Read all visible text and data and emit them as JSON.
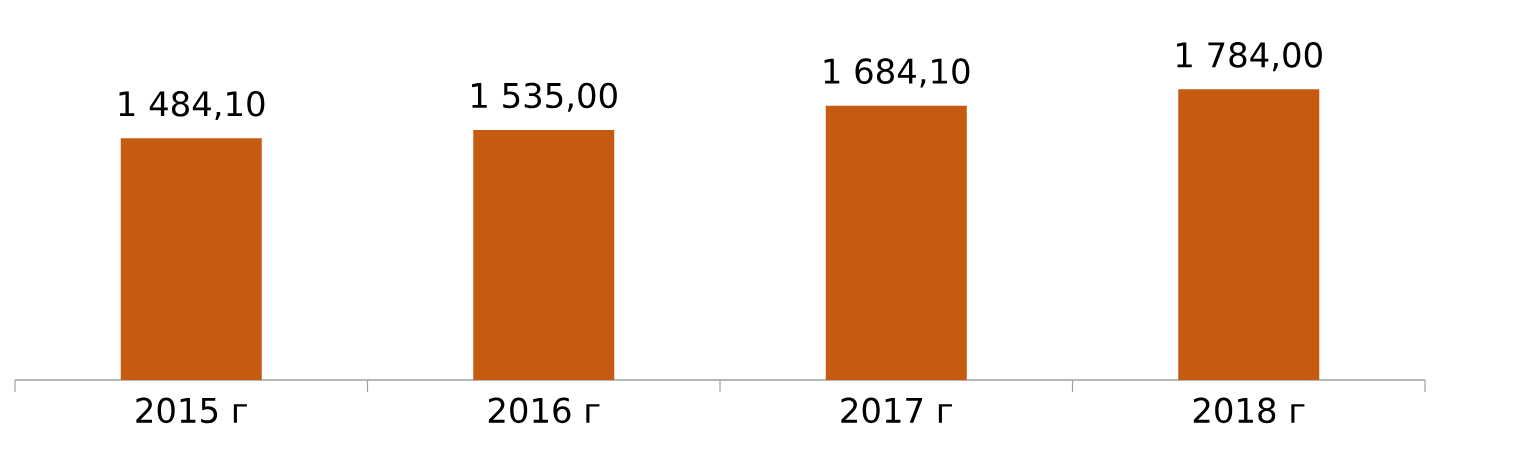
{
  "chart_data": {
    "type": "bar",
    "categories": [
      "2015 г",
      "2016 г",
      "2017 г",
      "2018 г"
    ],
    "values": [
      1484.1,
      1535,
      1684.1,
      1784
    ],
    "color": "#c55a11",
    "value_labels": [
      "1 484,10",
      "1 535,00",
      "1 684,10",
      "1 784,00"
    ]
  }
}
